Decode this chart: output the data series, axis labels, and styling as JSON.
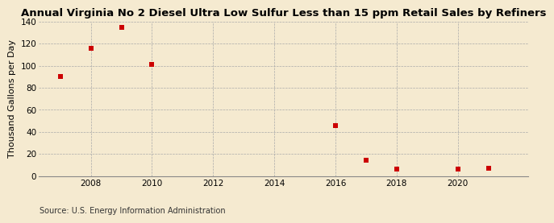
{
  "title": "Annual Virginia No 2 Diesel Ultra Low Sulfur Less than 15 ppm Retail Sales by Refiners",
  "ylabel": "Thousand Gallons per Day",
  "source": "Source: U.S. Energy Information Administration",
  "background_color": "#f5ead0",
  "plot_bg_color": "#f5ead0",
  "x_data": [
    2007,
    2008,
    2009,
    2010,
    2016,
    2017,
    2018,
    2020,
    2021
  ],
  "y_data": [
    90,
    116,
    135,
    101,
    46,
    14,
    6,
    6,
    7
  ],
  "marker_color": "#cc0000",
  "marker": "s",
  "marker_size": 4,
  "xlim": [
    2006.3,
    2022.3
  ],
  "ylim": [
    0,
    140
  ],
  "xticks": [
    2008,
    2010,
    2012,
    2014,
    2016,
    2018,
    2020
  ],
  "yticks": [
    0,
    20,
    40,
    60,
    80,
    100,
    120,
    140
  ],
  "title_fontsize": 9.5,
  "ylabel_fontsize": 8,
  "tick_fontsize": 7.5,
  "source_fontsize": 7
}
